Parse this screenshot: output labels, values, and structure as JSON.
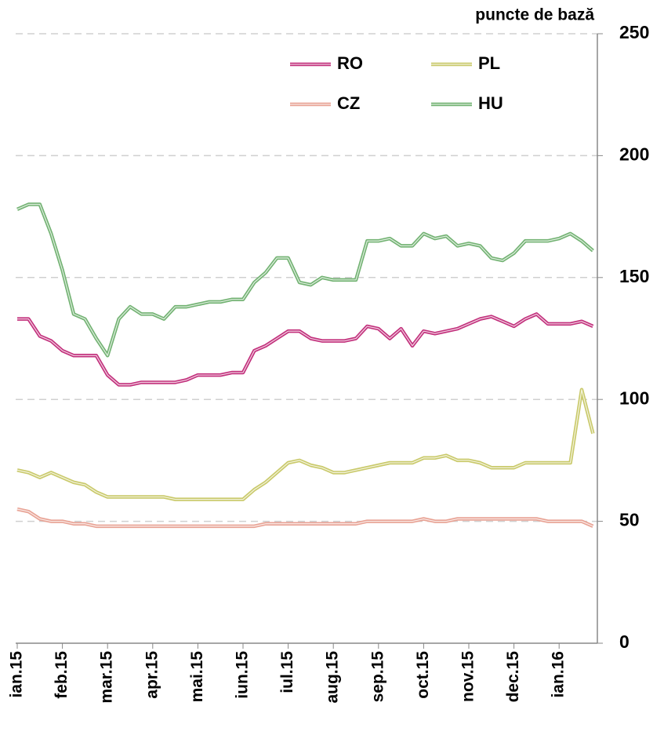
{
  "chart_data": {
    "type": "line",
    "y_axis_label": "puncte de bază",
    "categories": [
      "ian.15",
      null,
      null,
      null,
      "feb.15",
      null,
      null,
      null,
      "mar.15",
      null,
      null,
      null,
      "apr.15",
      null,
      null,
      null,
      "mai.15",
      null,
      null,
      null,
      "iun.15",
      null,
      null,
      null,
      "iul.15",
      null,
      null,
      null,
      "aug.15",
      null,
      null,
      null,
      "sep.15",
      null,
      null,
      null,
      "oct.15",
      null,
      null,
      null,
      "nov.15",
      null,
      null,
      null,
      "dec.15",
      null,
      null,
      null,
      "ian.16",
      null,
      null,
      null
    ],
    "series": [
      {
        "name": "RO",
        "color": "#c2307c",
        "values": [
          133,
          133,
          126,
          124,
          120,
          118,
          118,
          118,
          110,
          106,
          106,
          107,
          107,
          107,
          107,
          108,
          110,
          110,
          110,
          111,
          111,
          120,
          122,
          125,
          128,
          128,
          125,
          124,
          124,
          124,
          125,
          130,
          129,
          125,
          129,
          122,
          128,
          127,
          128,
          129,
          131,
          133,
          134,
          132,
          130,
          133,
          135,
          131,
          131,
          131,
          132,
          130
        ]
      },
      {
        "name": "PL",
        "color": "#c9c96a",
        "values": [
          71,
          70,
          68,
          70,
          68,
          66,
          65,
          62,
          60,
          60,
          60,
          60,
          60,
          60,
          59,
          59,
          59,
          59,
          59,
          59,
          59,
          63,
          66,
          70,
          74,
          75,
          73,
          72,
          70,
          70,
          71,
          72,
          73,
          74,
          74,
          74,
          76,
          76,
          77,
          75,
          75,
          74,
          72,
          72,
          72,
          74,
          74,
          74,
          74,
          74,
          104,
          86
        ]
      },
      {
        "name": "CZ",
        "color": "#e8a294",
        "values": [
          55,
          54,
          51,
          50,
          50,
          49,
          49,
          48,
          48,
          48,
          48,
          48,
          48,
          48,
          48,
          48,
          48,
          48,
          48,
          48,
          48,
          48,
          49,
          49,
          49,
          49,
          49,
          49,
          49,
          49,
          49,
          50,
          50,
          50,
          50,
          50,
          51,
          50,
          50,
          51,
          51,
          51,
          51,
          51,
          51,
          51,
          51,
          50,
          50,
          50,
          50,
          48
        ]
      },
      {
        "name": "HU",
        "color": "#72b272",
        "values": [
          178,
          180,
          180,
          168,
          153,
          135,
          133,
          125,
          118,
          133,
          138,
          135,
          135,
          133,
          138,
          138,
          139,
          140,
          140,
          141,
          141,
          148,
          152,
          158,
          158,
          148,
          147,
          150,
          149,
          149,
          149,
          165,
          165,
          166,
          163,
          163,
          168,
          166,
          167,
          163,
          164,
          163,
          158,
          157,
          160,
          165,
          165,
          165,
          166,
          168,
          165,
          161
        ]
      }
    ],
    "ylim": [
      0,
      250
    ],
    "yticks": [
      0,
      50,
      100,
      150,
      200,
      250
    ],
    "grid": true,
    "y_axis_side": "right",
    "legend": "top"
  }
}
